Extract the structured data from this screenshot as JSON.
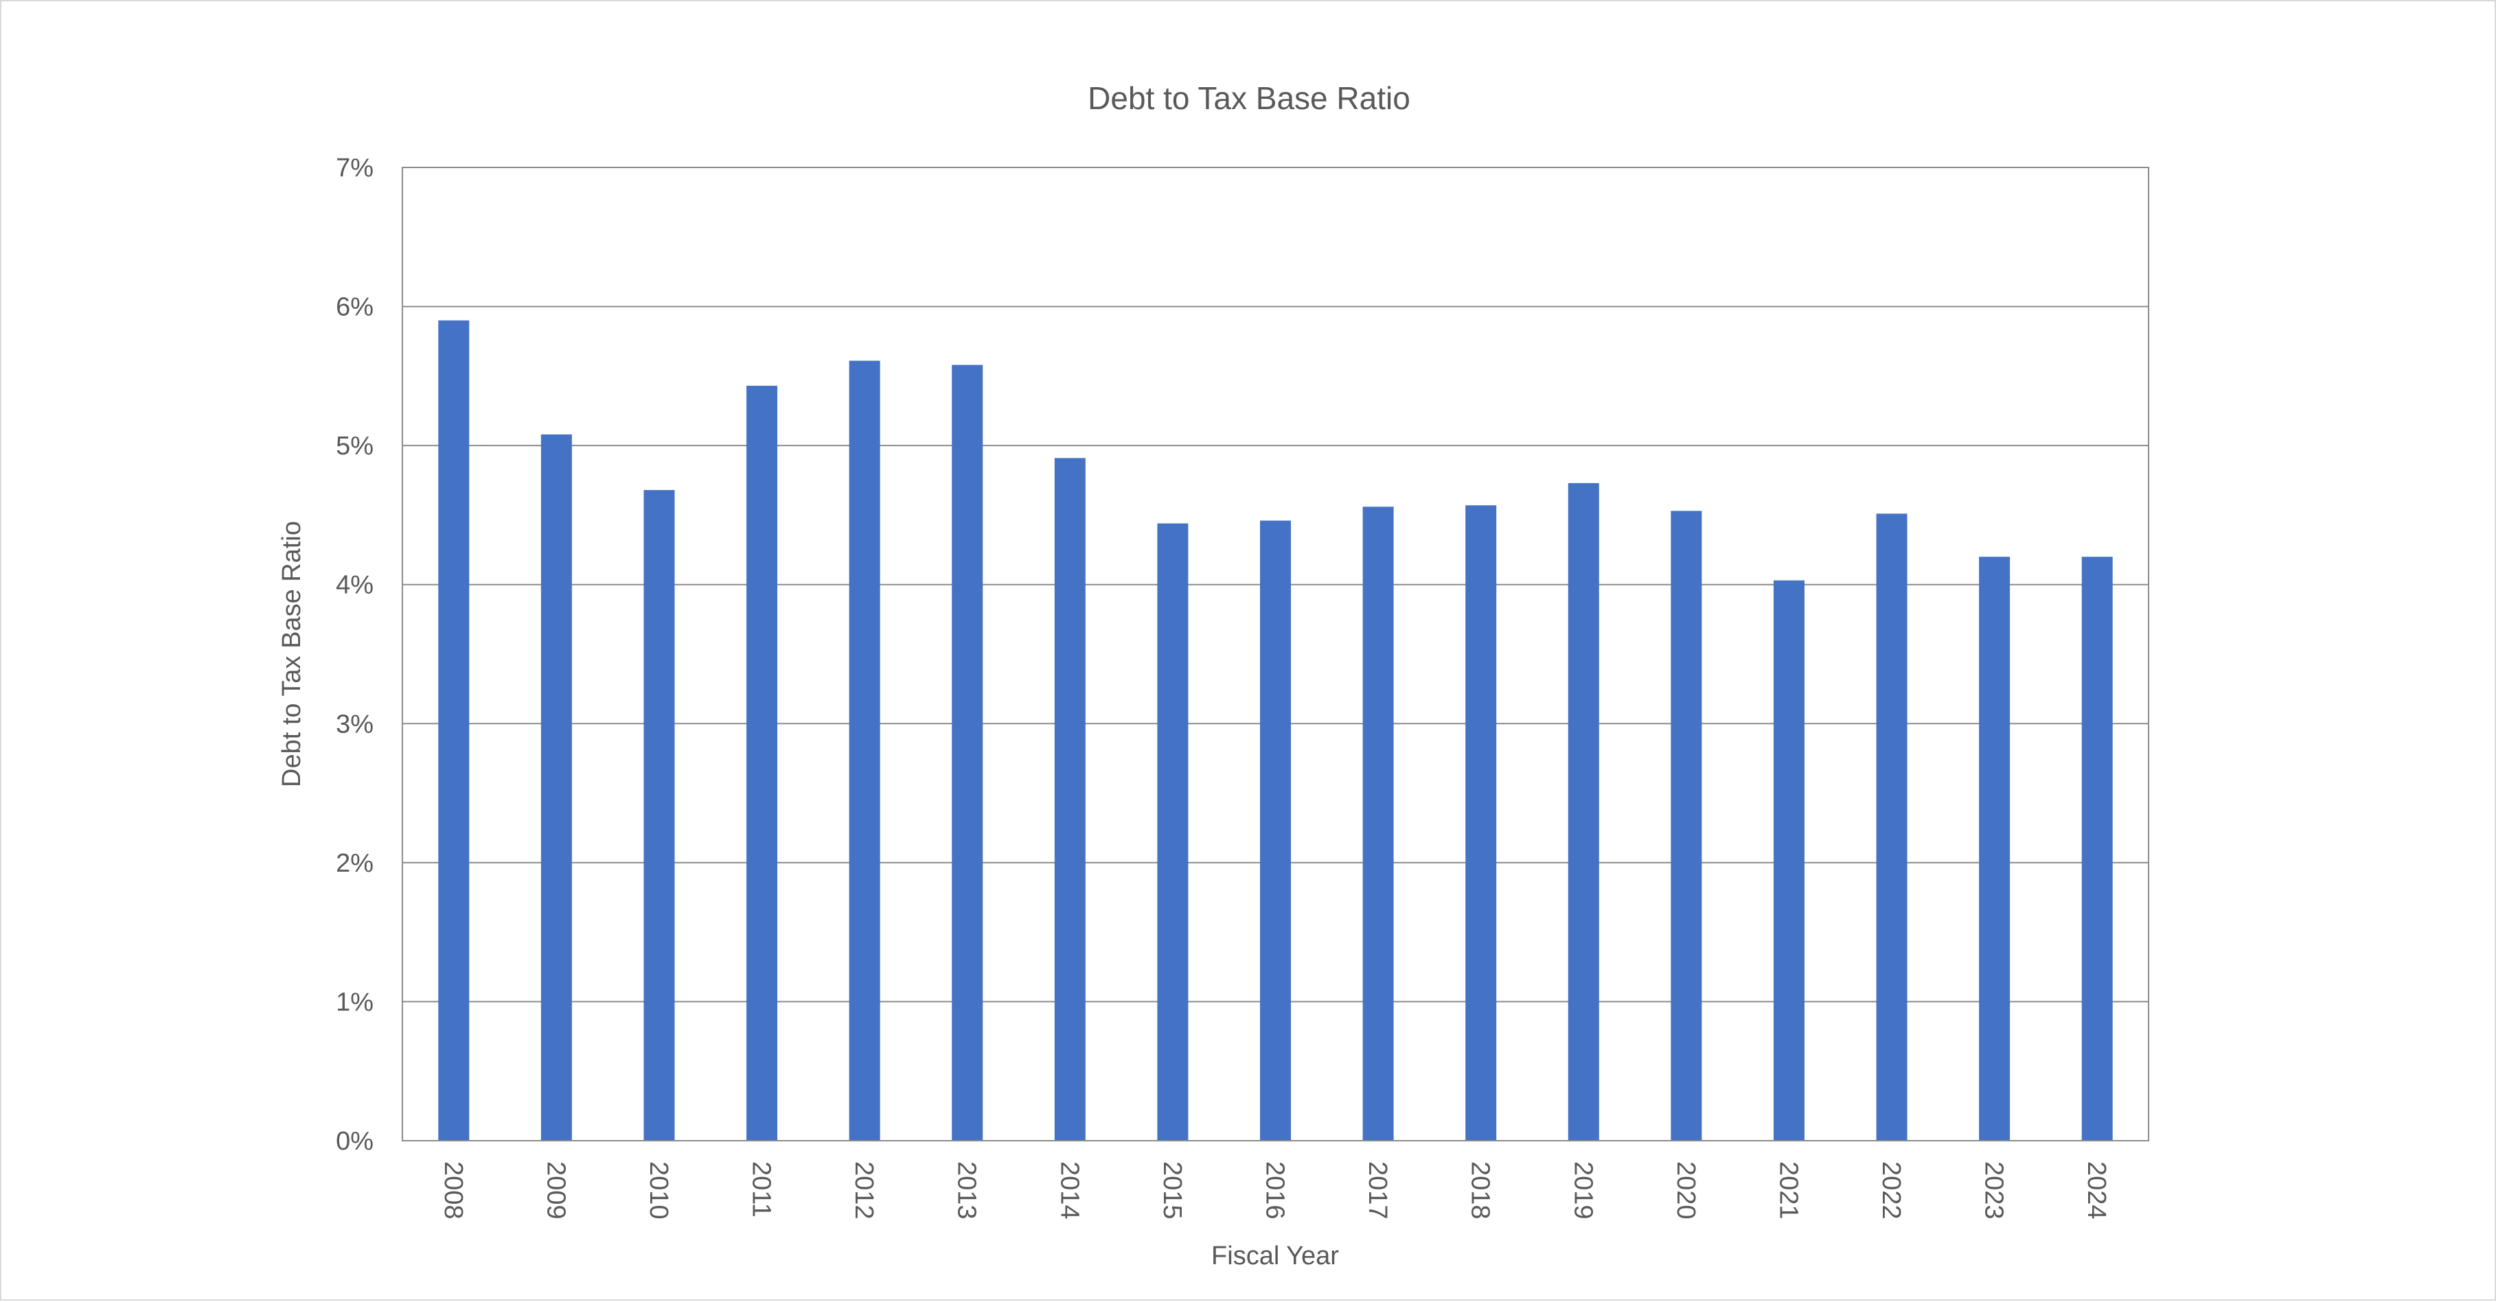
{
  "chart_data": {
    "type": "bar",
    "title": "Debt to Tax Base Ratio",
    "xlabel": "Fiscal Year",
    "ylabel": "Debt to Tax Base Ratio",
    "categories": [
      "2008",
      "2009",
      "2010",
      "2011",
      "2012",
      "2013",
      "2014",
      "2015",
      "2016",
      "2017",
      "2018",
      "2019",
      "2020",
      "2021",
      "2022",
      "2023",
      "2024"
    ],
    "series": [
      {
        "values": [
          5.9,
          5.08,
          4.68,
          5.43,
          5.61,
          5.58,
          4.91,
          4.44,
          4.46,
          4.56,
          4.57,
          4.73,
          4.53,
          4.03,
          4.51,
          4.2,
          4.2
        ],
        "color": "#4472c4"
      }
    ],
    "ylim": [
      0,
      7
    ],
    "yticks": [
      "0%",
      "1%",
      "2%",
      "3%",
      "4%",
      "5%",
      "6%",
      "7%"
    ],
    "grid": true,
    "legend": "none"
  }
}
